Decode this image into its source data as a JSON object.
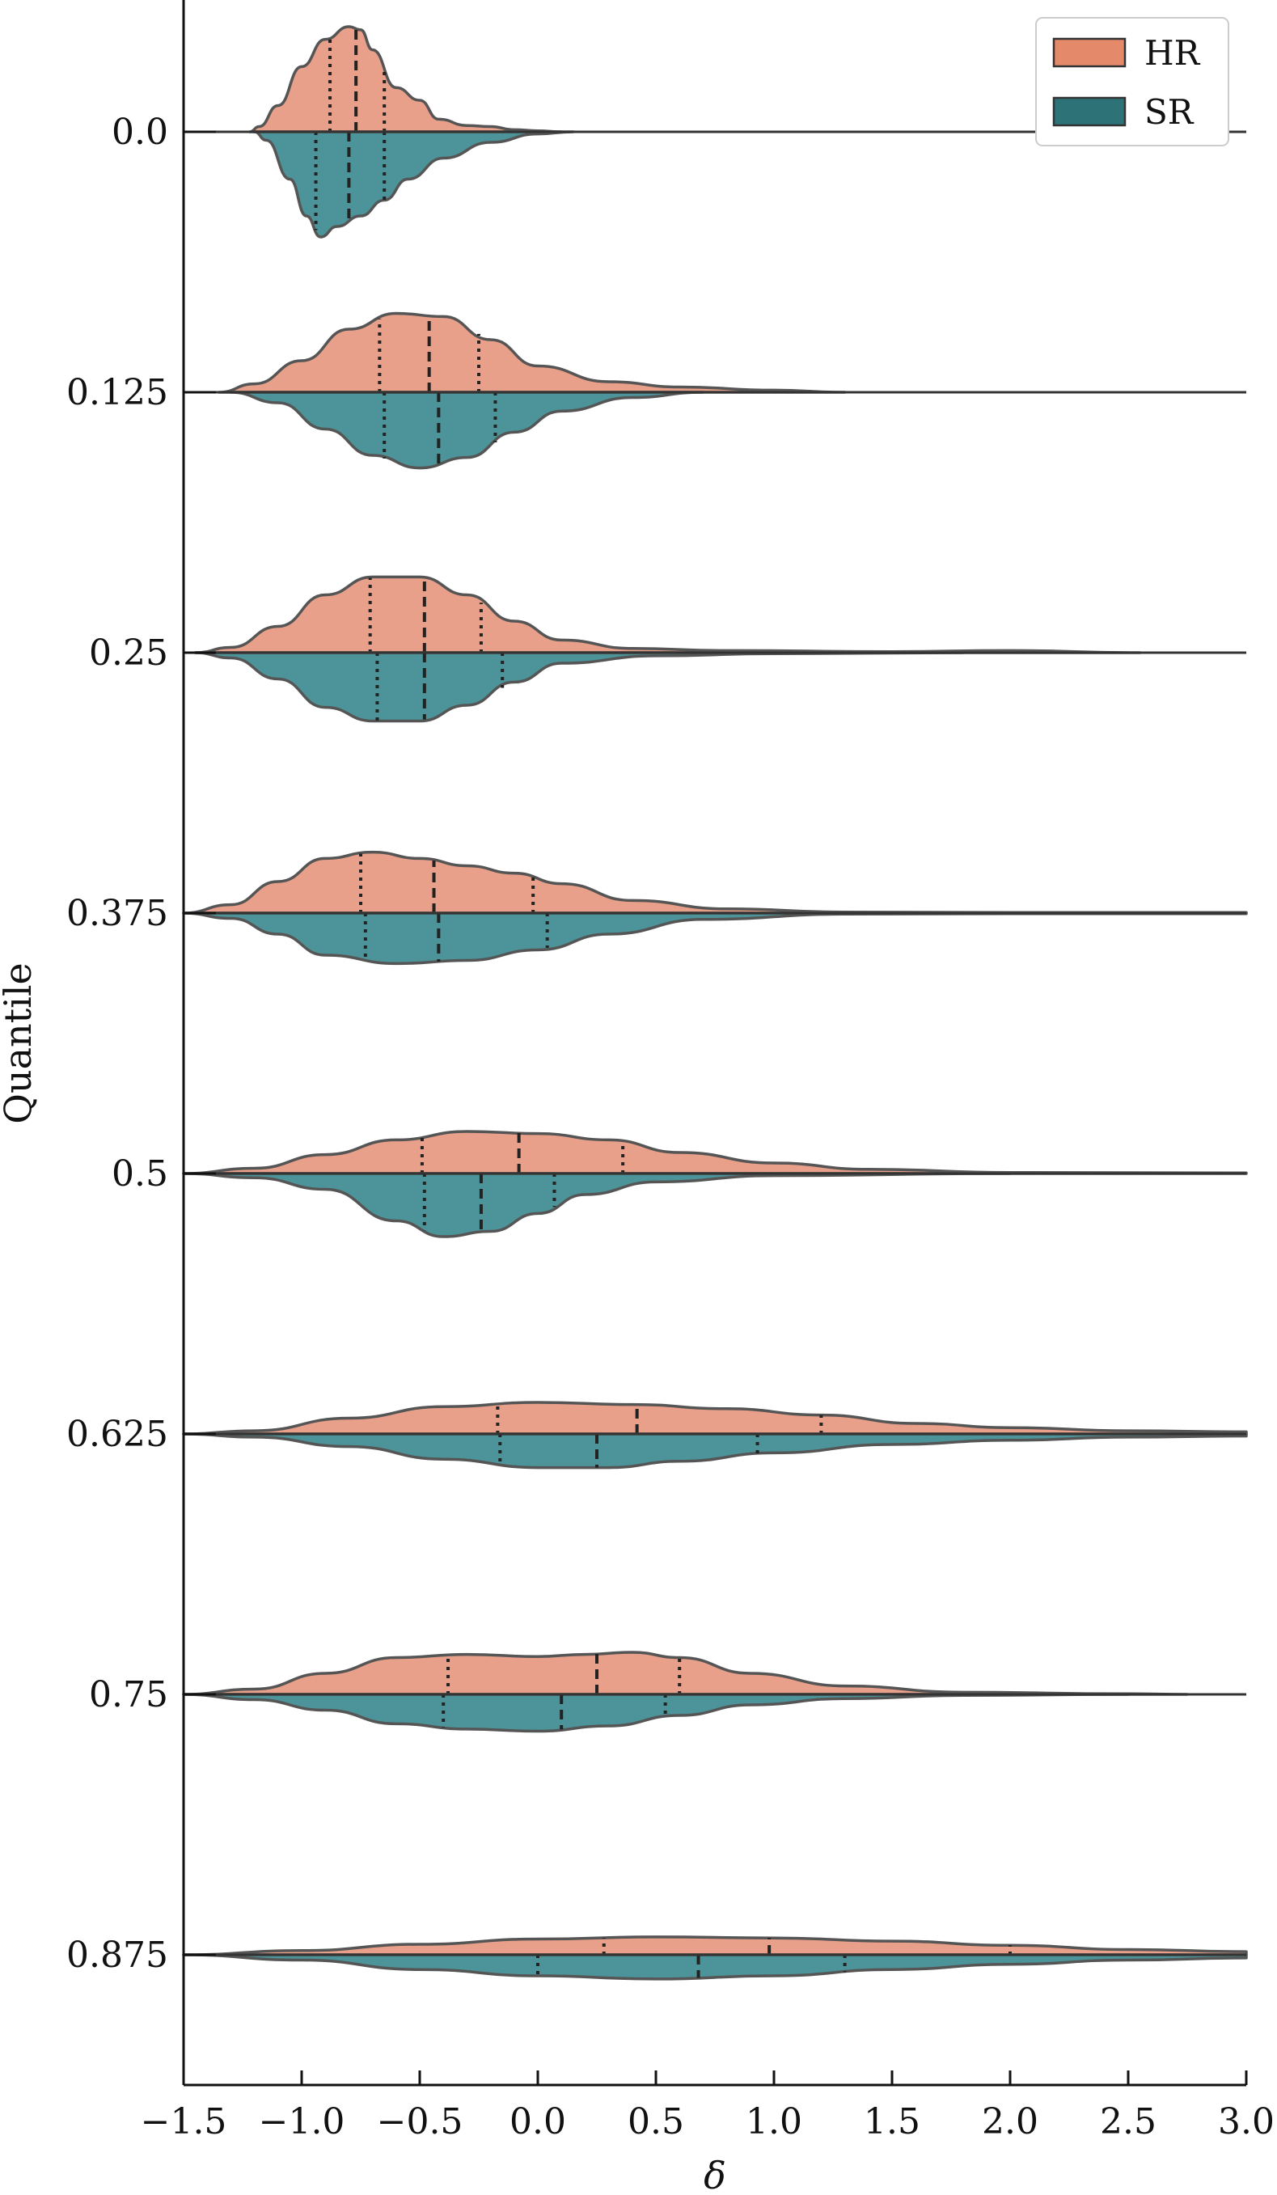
{
  "chart_data": {
    "type": "violin",
    "split": true,
    "xlabel": "δ",
    "ylabel": "Quantile",
    "xlim": [
      -1.5,
      3.0
    ],
    "xticks": [
      -1.5,
      -1.0,
      -0.5,
      0.0,
      0.5,
      1.0,
      1.5,
      2.0,
      2.5,
      3.0
    ],
    "xtick_labels": [
      "−1.5",
      "−1.0",
      "−0.5",
      "0.0",
      "0.5",
      "1.0",
      "1.5",
      "2.0",
      "2.5",
      "3.0"
    ],
    "categories": [
      "0.0",
      "0.125",
      "0.25",
      "0.375",
      "0.5",
      "0.625",
      "0.75",
      "0.875"
    ],
    "legend": {
      "position": "top-right",
      "entries": [
        "HR",
        "SR"
      ]
    },
    "grid": false,
    "colors": {
      "HR": "#e8a08a",
      "SR": "#4c9499",
      "HR_legend": "#e4896a",
      "SR_legend": "#2d7277",
      "outline": "#555555"
    },
    "series": [
      {
        "name": "HR",
        "side": "upper",
        "violins": [
          {
            "quantile": "0.0",
            "q1": -0.88,
            "median": -0.77,
            "q3": -0.65,
            "profile": [
              [
                -1.22,
                0
              ],
              [
                -1.18,
                0.05
              ],
              [
                -1.1,
                0.25
              ],
              [
                -1.0,
                0.62
              ],
              [
                -0.9,
                0.88
              ],
              [
                -0.8,
                1.0
              ],
              [
                -0.75,
                0.97
              ],
              [
                -0.7,
                0.78
              ],
              [
                -0.6,
                0.42
              ],
              [
                -0.5,
                0.3
              ],
              [
                -0.42,
                0.12
              ],
              [
                -0.3,
                0.06
              ],
              [
                -0.2,
                0.05
              ],
              [
                -0.1,
                0.02
              ],
              [
                0.0,
                0.01
              ],
              [
                0.1,
                0.0
              ]
            ]
          },
          {
            "quantile": "0.125",
            "q1": -0.67,
            "median": -0.46,
            "q3": -0.25,
            "profile": [
              [
                -1.35,
                0
              ],
              [
                -1.2,
                0.08
              ],
              [
                -1.0,
                0.3
              ],
              [
                -0.8,
                0.6
              ],
              [
                -0.6,
                0.75
              ],
              [
                -0.4,
                0.72
              ],
              [
                -0.2,
                0.5
              ],
              [
                0.0,
                0.25
              ],
              [
                0.3,
                0.1
              ],
              [
                0.6,
                0.05
              ],
              [
                1.0,
                0.02
              ],
              [
                1.3,
                0.0
              ]
            ]
          },
          {
            "quantile": "0.25",
            "q1": -0.71,
            "median": -0.48,
            "q3": -0.24,
            "profile": [
              [
                -1.45,
                0
              ],
              [
                -1.3,
                0.05
              ],
              [
                -1.1,
                0.25
              ],
              [
                -0.9,
                0.55
              ],
              [
                -0.7,
                0.72
              ],
              [
                -0.5,
                0.72
              ],
              [
                -0.3,
                0.55
              ],
              [
                -0.1,
                0.3
              ],
              [
                0.1,
                0.12
              ],
              [
                0.4,
                0.04
              ],
              [
                0.8,
                0.02
              ],
              [
                1.5,
                0.01
              ],
              [
                2.0,
                0.02
              ],
              [
                2.55,
                0.0
              ]
            ]
          },
          {
            "quantile": "0.375",
            "q1": -0.75,
            "median": -0.44,
            "q3": -0.02,
            "profile": [
              [
                -1.5,
                0
              ],
              [
                -1.3,
                0.08
              ],
              [
                -1.1,
                0.3
              ],
              [
                -0.9,
                0.52
              ],
              [
                -0.7,
                0.58
              ],
              [
                -0.5,
                0.52
              ],
              [
                -0.3,
                0.45
              ],
              [
                -0.1,
                0.38
              ],
              [
                0.1,
                0.28
              ],
              [
                0.4,
                0.12
              ],
              [
                0.8,
                0.04
              ],
              [
                1.3,
                0.01
              ],
              [
                2.0,
                0.005
              ],
              [
                3.0,
                0.005
              ]
            ]
          },
          {
            "quantile": "0.5",
            "q1": -0.49,
            "median": -0.08,
            "q3": 0.36,
            "profile": [
              [
                -1.5,
                0
              ],
              [
                -1.2,
                0.05
              ],
              [
                -0.9,
                0.18
              ],
              [
                -0.6,
                0.32
              ],
              [
                -0.3,
                0.4
              ],
              [
                0.0,
                0.38
              ],
              [
                0.3,
                0.32
              ],
              [
                0.6,
                0.2
              ],
              [
                1.0,
                0.1
              ],
              [
                1.4,
                0.04
              ],
              [
                2.0,
                0.01
              ],
              [
                3.0,
                0.005
              ]
            ]
          },
          {
            "quantile": "0.625",
            "q1": -0.17,
            "median": 0.42,
            "q3": 1.2,
            "profile": [
              [
                -1.5,
                0
              ],
              [
                -1.2,
                0.03
              ],
              [
                -0.8,
                0.15
              ],
              [
                -0.4,
                0.26
              ],
              [
                0.0,
                0.3
              ],
              [
                0.4,
                0.28
              ],
              [
                0.8,
                0.24
              ],
              [
                1.2,
                0.18
              ],
              [
                1.6,
                0.1
              ],
              [
                2.0,
                0.06
              ],
              [
                2.5,
                0.03
              ],
              [
                3.0,
                0.02
              ]
            ]
          },
          {
            "quantile": "0.75",
            "q1": -0.38,
            "median": 0.25,
            "q3": 0.6,
            "profile": [
              [
                -1.5,
                0
              ],
              [
                -1.2,
                0.05
              ],
              [
                -0.9,
                0.2
              ],
              [
                -0.6,
                0.35
              ],
              [
                -0.3,
                0.38
              ],
              [
                0.0,
                0.36
              ],
              [
                0.2,
                0.38
              ],
              [
                0.4,
                0.4
              ],
              [
                0.6,
                0.35
              ],
              [
                0.9,
                0.2
              ],
              [
                1.3,
                0.08
              ],
              [
                1.8,
                0.02
              ],
              [
                2.5,
                0.005
              ],
              [
                2.75,
                0.0
              ]
            ]
          },
          {
            "quantile": "0.875",
            "q1": 0.28,
            "median": 0.98,
            "q3": 2.0,
            "profile": [
              [
                -1.5,
                0
              ],
              [
                -1.0,
                0.04
              ],
              [
                -0.5,
                0.1
              ],
              [
                0.0,
                0.15
              ],
              [
                0.5,
                0.17
              ],
              [
                1.0,
                0.16
              ],
              [
                1.5,
                0.13
              ],
              [
                2.0,
                0.09
              ],
              [
                2.5,
                0.05
              ],
              [
                3.0,
                0.03
              ]
            ]
          }
        ]
      },
      {
        "name": "SR",
        "side": "lower",
        "violins": [
          {
            "quantile": "0.0",
            "q1": -0.94,
            "median": -0.8,
            "q3": -0.65,
            "profile": [
              [
                -1.2,
                0
              ],
              [
                -1.15,
                0.08
              ],
              [
                -1.05,
                0.45
              ],
              [
                -0.98,
                0.8
              ],
              [
                -0.92,
                1.0
              ],
              [
                -0.85,
                0.9
              ],
              [
                -0.75,
                0.8
              ],
              [
                -0.65,
                0.65
              ],
              [
                -0.55,
                0.45
              ],
              [
                -0.4,
                0.25
              ],
              [
                -0.2,
                0.1
              ],
              [
                0.0,
                0.02
              ],
              [
                0.15,
                0.0
              ]
            ]
          },
          {
            "quantile": "0.125",
            "q1": -0.65,
            "median": -0.42,
            "q3": -0.18,
            "profile": [
              [
                -1.3,
                0
              ],
              [
                -1.1,
                0.1
              ],
              [
                -0.9,
                0.35
              ],
              [
                -0.7,
                0.6
              ],
              [
                -0.5,
                0.72
              ],
              [
                -0.3,
                0.62
              ],
              [
                -0.1,
                0.38
              ],
              [
                0.1,
                0.18
              ],
              [
                0.4,
                0.05
              ],
              [
                0.7,
                0.0
              ]
            ]
          },
          {
            "quantile": "0.25",
            "q1": -0.68,
            "median": -0.48,
            "q3": -0.15,
            "profile": [
              [
                -1.45,
                0
              ],
              [
                -1.3,
                0.05
              ],
              [
                -1.1,
                0.25
              ],
              [
                -0.9,
                0.52
              ],
              [
                -0.7,
                0.65
              ],
              [
                -0.5,
                0.65
              ],
              [
                -0.3,
                0.5
              ],
              [
                -0.1,
                0.28
              ],
              [
                0.1,
                0.1
              ],
              [
                0.5,
                0.03
              ],
              [
                1.0,
                0.01
              ],
              [
                1.8,
                0.0
              ]
            ]
          },
          {
            "quantile": "0.375",
            "q1": -0.73,
            "median": -0.42,
            "q3": 0.04,
            "profile": [
              [
                -1.5,
                0
              ],
              [
                -1.3,
                0.05
              ],
              [
                -1.1,
                0.2
              ],
              [
                -0.9,
                0.4
              ],
              [
                -0.6,
                0.48
              ],
              [
                -0.3,
                0.45
              ],
              [
                0.0,
                0.35
              ],
              [
                0.3,
                0.2
              ],
              [
                0.7,
                0.06
              ],
              [
                1.3,
                0.01
              ],
              [
                2.0,
                0.005
              ],
              [
                3.0,
                0.005
              ]
            ]
          },
          {
            "quantile": "0.5",
            "q1": -0.48,
            "median": -0.24,
            "q3": 0.07,
            "profile": [
              [
                -1.5,
                0
              ],
              [
                -1.2,
                0.04
              ],
              [
                -0.9,
                0.15
              ],
              [
                -0.6,
                0.45
              ],
              [
                -0.4,
                0.6
              ],
              [
                -0.2,
                0.55
              ],
              [
                0.0,
                0.38
              ],
              [
                0.2,
                0.2
              ],
              [
                0.5,
                0.08
              ],
              [
                1.0,
                0.02
              ],
              [
                2.0,
                0.0
              ]
            ]
          },
          {
            "quantile": "0.625",
            "q1": -0.16,
            "median": 0.25,
            "q3": 0.93,
            "profile": [
              [
                -1.5,
                0
              ],
              [
                -1.2,
                0.03
              ],
              [
                -0.8,
                0.12
              ],
              [
                -0.4,
                0.24
              ],
              [
                0.0,
                0.32
              ],
              [
                0.3,
                0.32
              ],
              [
                0.6,
                0.26
              ],
              [
                1.0,
                0.18
              ],
              [
                1.5,
                0.1
              ],
              [
                2.0,
                0.06
              ],
              [
                2.5,
                0.03
              ],
              [
                3.0,
                0.02
              ]
            ]
          },
          {
            "quantile": "0.75",
            "q1": -0.4,
            "median": 0.1,
            "q3": 0.54,
            "profile": [
              [
                -1.5,
                0
              ],
              [
                -1.2,
                0.05
              ],
              [
                -0.9,
                0.15
              ],
              [
                -0.6,
                0.28
              ],
              [
                -0.3,
                0.33
              ],
              [
                0.0,
                0.35
              ],
              [
                0.3,
                0.3
              ],
              [
                0.6,
                0.2
              ],
              [
                0.9,
                0.1
              ],
              [
                1.3,
                0.04
              ],
              [
                1.8,
                0.01
              ],
              [
                2.5,
                0.0
              ]
            ]
          },
          {
            "quantile": "0.875",
            "q1": 0.0,
            "median": 0.68,
            "q3": 1.3,
            "profile": [
              [
                -1.5,
                0
              ],
              [
                -1.0,
                0.05
              ],
              [
                -0.5,
                0.14
              ],
              [
                0.0,
                0.2
              ],
              [
                0.5,
                0.23
              ],
              [
                1.0,
                0.2
              ],
              [
                1.5,
                0.14
              ],
              [
                2.0,
                0.09
              ],
              [
                2.5,
                0.05
              ],
              [
                3.0,
                0.03
              ]
            ]
          }
        ]
      }
    ]
  }
}
